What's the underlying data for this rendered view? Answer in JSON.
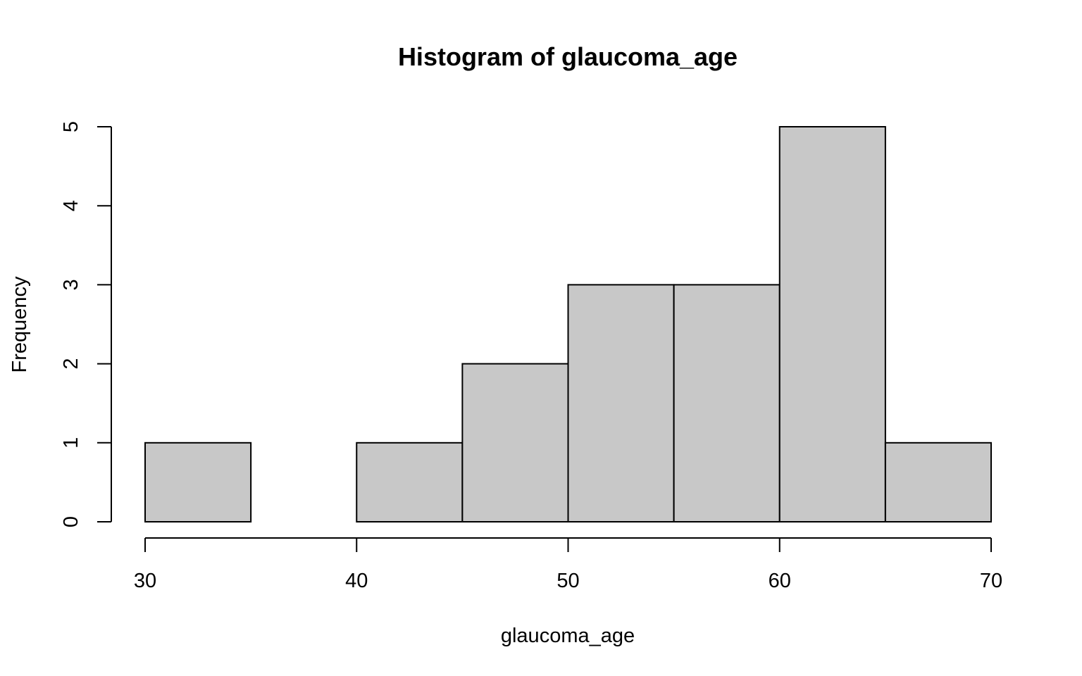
{
  "chart_data": {
    "type": "bar",
    "title": "Histogram of glaucoma_age",
    "xlabel": "glaucoma_age",
    "ylabel": "Frequency",
    "bins": [
      {
        "start": 30,
        "end": 35,
        "count": 1
      },
      {
        "start": 35,
        "end": 40,
        "count": 0
      },
      {
        "start": 40,
        "end": 45,
        "count": 1
      },
      {
        "start": 45,
        "end": 50,
        "count": 2
      },
      {
        "start": 50,
        "end": 55,
        "count": 3
      },
      {
        "start": 55,
        "end": 60,
        "count": 3
      },
      {
        "start": 60,
        "end": 65,
        "count": 5
      },
      {
        "start": 65,
        "end": 70,
        "count": 1
      }
    ],
    "xlim": [
      30,
      70
    ],
    "ylim": [
      0,
      5
    ],
    "x_ticks": [
      30,
      40,
      50,
      60,
      70
    ],
    "y_ticks": [
      0,
      1,
      2,
      3,
      4,
      5
    ],
    "x_tick_labels": [
      "30",
      "40",
      "50",
      "60",
      "70"
    ],
    "y_tick_labels": [
      "0",
      "1",
      "2",
      "3",
      "4",
      "5"
    ],
    "grid": false,
    "legend": "none",
    "bar_fill": "#c8c8c8",
    "bar_stroke": "#000000"
  }
}
